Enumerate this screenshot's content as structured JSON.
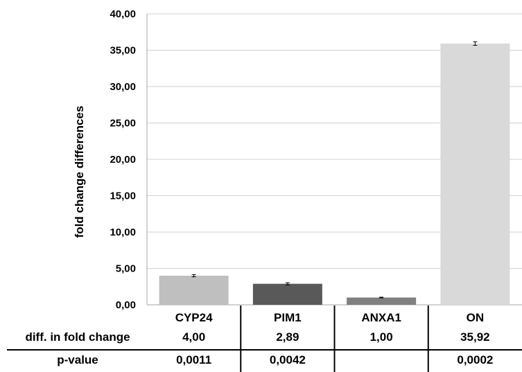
{
  "chart_data": {
    "type": "bar",
    "ylabel": "fold change differences",
    "ylim": [
      0,
      40
    ],
    "yticks": [
      "0,00",
      "5,00",
      "10,00",
      "15,00",
      "20,00",
      "25,00",
      "30,00",
      "35,00",
      "40,00"
    ],
    "categories": [
      "CYP24",
      "PIM1",
      "ANXA1",
      "ON"
    ],
    "values": [
      4.0,
      2.89,
      1.0,
      35.92
    ],
    "errors": [
      0.15,
      0.15,
      0.05,
      0.25
    ],
    "grid": true,
    "bar_colors": [
      "#bfbfbf",
      "#595959",
      "#808080",
      "#d9d9d9"
    ],
    "table": {
      "rows": [
        {
          "label": "diff. in fold change",
          "values": [
            "4,00",
            "2,89",
            "1,00",
            "35,92"
          ]
        },
        {
          "label": "p-value",
          "values": [
            "0,0011",
            "0,0042",
            "",
            "0,0002"
          ]
        }
      ]
    }
  }
}
